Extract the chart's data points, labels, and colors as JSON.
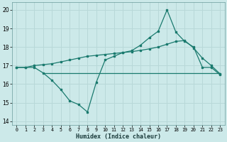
{
  "xlabel": "Humidex (Indice chaleur)",
  "ylabel": "",
  "xlim": [
    -0.5,
    23.5
  ],
  "ylim": [
    13.8,
    20.4
  ],
  "yticks": [
    14,
    15,
    16,
    17,
    18,
    19,
    20
  ],
  "xticks": [
    0,
    1,
    2,
    3,
    4,
    5,
    6,
    7,
    8,
    9,
    10,
    11,
    12,
    13,
    14,
    15,
    16,
    17,
    18,
    19,
    20,
    21,
    22,
    23
  ],
  "bg_color": "#cce9e9",
  "grid_color": "#b8d8d8",
  "line_color": "#1a7a6e",
  "line1_x": [
    0,
    1,
    2,
    3,
    4,
    5,
    6,
    7,
    8,
    9,
    10,
    11,
    12,
    13,
    14,
    15,
    16,
    17,
    18,
    19,
    20,
    21,
    22,
    23
  ],
  "line1_y": [
    16.9,
    16.9,
    16.9,
    16.6,
    16.2,
    15.7,
    15.1,
    14.9,
    14.5,
    16.1,
    17.3,
    17.5,
    17.7,
    17.8,
    18.1,
    18.5,
    18.85,
    20.0,
    18.8,
    18.3,
    18.0,
    16.9,
    16.9,
    16.5
  ],
  "line2_x": [
    0,
    1,
    2,
    3,
    4,
    5,
    6,
    7,
    8,
    9,
    10,
    11,
    12,
    13,
    14,
    15,
    16,
    17,
    18,
    19,
    20,
    21,
    22,
    23
  ],
  "line2_y": [
    16.9,
    16.9,
    17.0,
    17.05,
    17.1,
    17.2,
    17.3,
    17.4,
    17.5,
    17.55,
    17.6,
    17.65,
    17.7,
    17.75,
    17.82,
    17.9,
    18.0,
    18.15,
    18.3,
    18.35,
    17.95,
    17.4,
    17.0,
    16.55
  ],
  "line3_x": [
    3,
    23
  ],
  "line3_y": [
    16.6,
    16.6
  ]
}
